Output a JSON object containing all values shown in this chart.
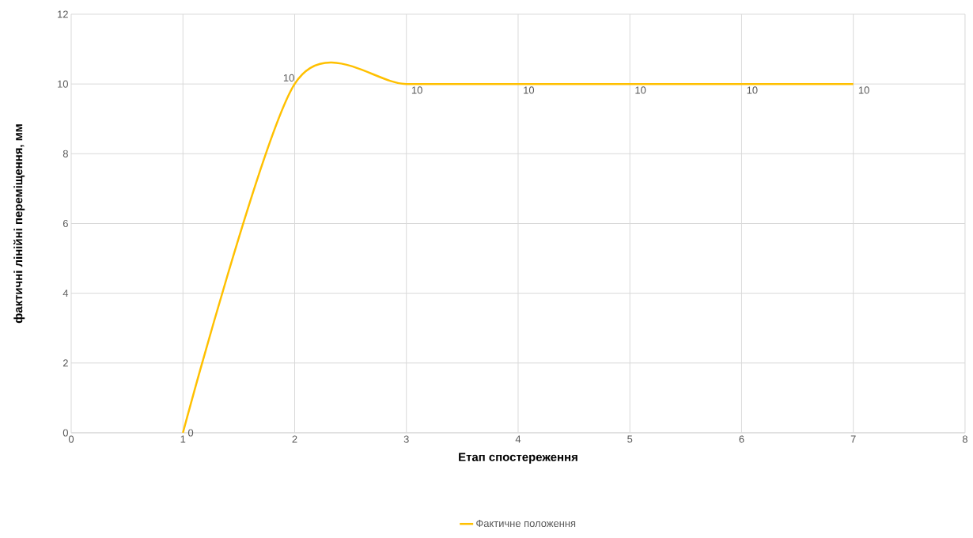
{
  "chart_data": {
    "type": "line",
    "xlabel": "Етап спостереження",
    "ylabel": "фактичні лінійні переміщення, мм",
    "x": [
      1,
      2,
      3,
      4,
      5,
      6,
      7
    ],
    "series": [
      {
        "name": "Фактичне положення",
        "color": "#ffc000",
        "values": [
          0,
          10,
          10,
          10,
          10,
          10,
          10
        ]
      }
    ],
    "xlim": [
      0,
      8
    ],
    "xticks": [
      0,
      1,
      2,
      3,
      4,
      5,
      6,
      7,
      8
    ],
    "ylim": [
      0,
      12
    ],
    "yticks": [
      0,
      2,
      4,
      6,
      8,
      10,
      12
    ],
    "grid": true,
    "legend": "bottom",
    "marker": "none",
    "line_style": "solid",
    "data_labels": true
  }
}
